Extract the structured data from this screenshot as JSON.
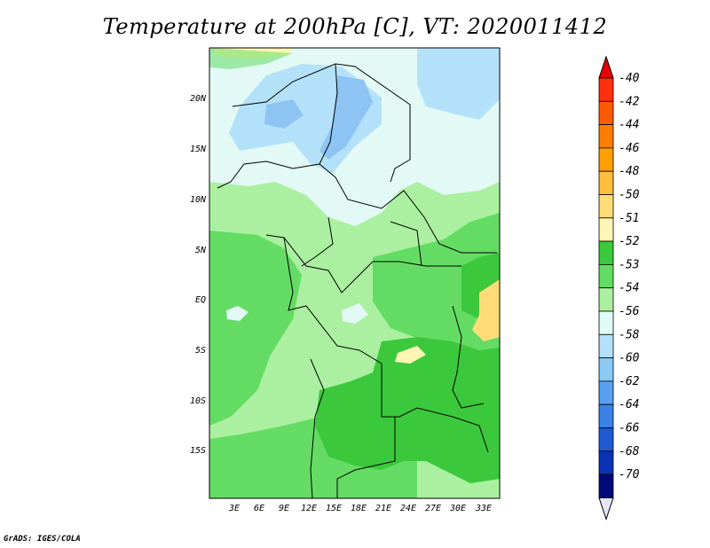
{
  "title": "Temperature at 200hPa [C], VT: 2020011412",
  "footer": "GrADS: IGES/COLA",
  "map": {
    "lat_labels": [
      "20N",
      "15N",
      "10N",
      "5N",
      "EQ",
      "5S",
      "10S",
      "15S"
    ],
    "lon_labels": [
      "3E",
      "6E",
      "9E",
      "12E",
      "15E",
      "18E",
      "21E",
      "24E",
      "27E",
      "30E",
      "33E"
    ]
  },
  "colorbar": {
    "labels": [
      "-40",
      "-42",
      "-44",
      "-46",
      "-48",
      "-50",
      "-51",
      "-52",
      "-53",
      "-54",
      "-56",
      "-58",
      "-60",
      "-62",
      "-64",
      "-66",
      "-68",
      "-70"
    ],
    "colors": [
      "#ff3010",
      "#ff5a00",
      "#ff7d00",
      "#ffa000",
      "#ffbe3c",
      "#ffdc78",
      "#fff5b4",
      "#3cc83c",
      "#64dc64",
      "#aaf0a0",
      "#e1faf5",
      "#b4e1fa",
      "#8ac8f5",
      "#5aa0f0",
      "#3c82e6",
      "#1e5ad2",
      "#0a32b4",
      "#000a78"
    ],
    "top_color": "#e60000",
    "bottom_color": "#e6e6fa"
  },
  "colors": {
    "cold_blue": "#8ec4f4",
    "pale_cyan": "#e2f9f5",
    "light_green": "#aaf0a0",
    "mid_green": "#64dc64",
    "dark_green": "#3cc83c",
    "yellow": "#ffdc78"
  }
}
